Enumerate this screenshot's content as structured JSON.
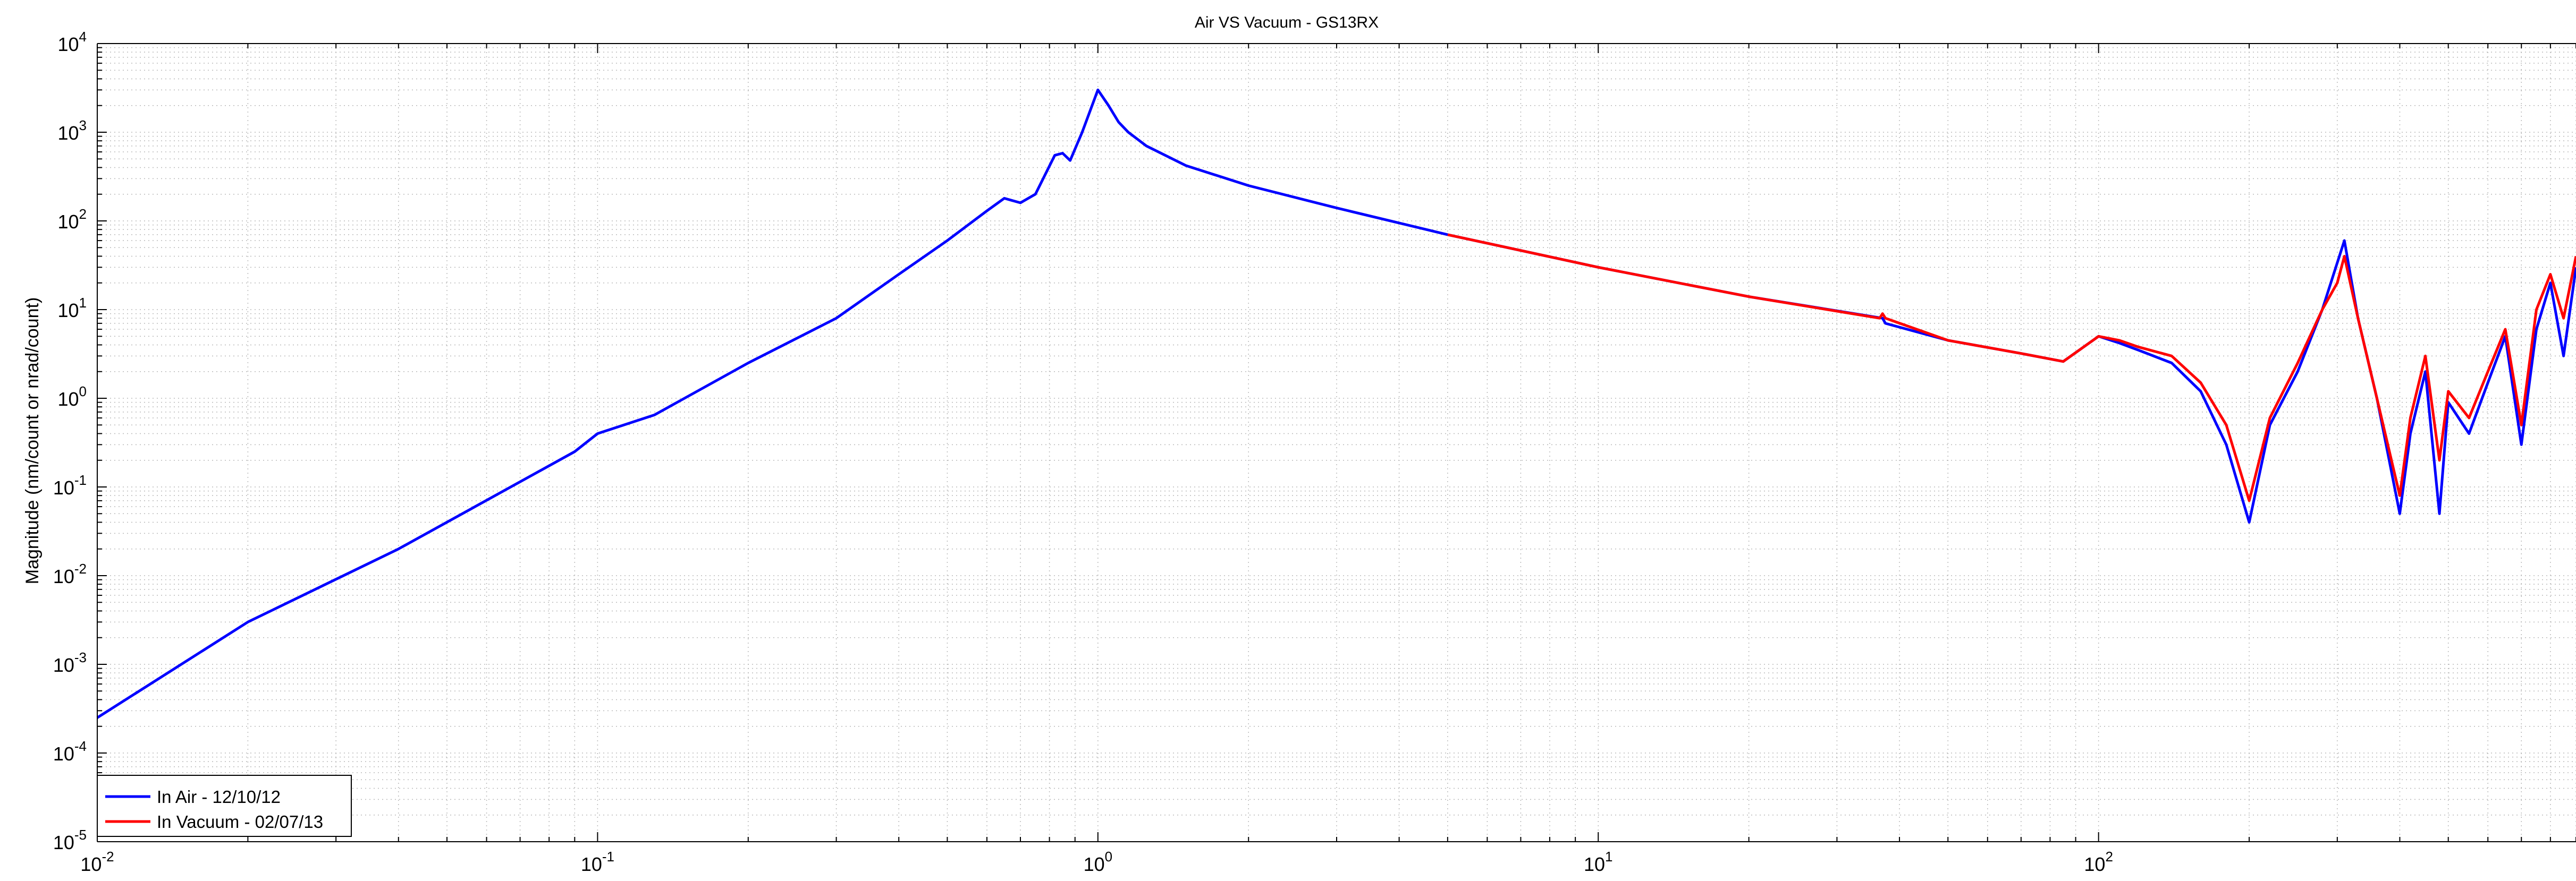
{
  "chart_data": {
    "type": "line",
    "title": "Air VS Vacuum - GS13RX",
    "xlabel": "",
    "ylabel": "Magnitude (nm/count or nrad/count)",
    "x_scale": "log",
    "y_scale": "log",
    "xlim": [
      0.01,
      900
    ],
    "ylim": [
      1e-05,
      10000
    ],
    "grid": true,
    "legend_position": "bottom-left",
    "x_ticks": [
      {
        "value": 0.01,
        "mantissa": "10",
        "exp": "-2"
      },
      {
        "value": 0.1,
        "mantissa": "10",
        "exp": "-1"
      },
      {
        "value": 1,
        "mantissa": "10",
        "exp": "0"
      },
      {
        "value": 10,
        "mantissa": "10",
        "exp": "1"
      },
      {
        "value": 100,
        "mantissa": "10",
        "exp": "2"
      }
    ],
    "y_ticks": [
      {
        "value": 1e-05,
        "mantissa": "10",
        "exp": "-5"
      },
      {
        "value": 0.0001,
        "mantissa": "10",
        "exp": "-4"
      },
      {
        "value": 0.001,
        "mantissa": "10",
        "exp": "-3"
      },
      {
        "value": 0.01,
        "mantissa": "10",
        "exp": "-2"
      },
      {
        "value": 0.1,
        "mantissa": "10",
        "exp": "-1"
      },
      {
        "value": 1,
        "mantissa": "10",
        "exp": "0"
      },
      {
        "value": 10,
        "mantissa": "10",
        "exp": "1"
      },
      {
        "value": 100,
        "mantissa": "10",
        "exp": "2"
      },
      {
        "value": 1000,
        "mantissa": "10",
        "exp": "3"
      },
      {
        "value": 10000,
        "mantissa": "10",
        "exp": "4"
      }
    ],
    "series": [
      {
        "name": "In Air - 12/10/12",
        "color": "#0000ff",
        "x": [
          0.01,
          0.02,
          0.04,
          0.09,
          0.1,
          0.13,
          0.2,
          0.3,
          0.4,
          0.5,
          0.6,
          0.65,
          0.7,
          0.75,
          0.82,
          0.85,
          0.88,
          0.93,
          1.0,
          1.05,
          1.1,
          1.15,
          1.25,
          1.5,
          2,
          3,
          5,
          10,
          20,
          37,
          37.5,
          50,
          70,
          85,
          100,
          110,
          120,
          140,
          160,
          180,
          200,
          220,
          250,
          280,
          310,
          330,
          360,
          400,
          420,
          450,
          480,
          500,
          550,
          600,
          650,
          700,
          750,
          800,
          850,
          900
        ],
        "y": [
          0.00025,
          0.003,
          0.02,
          0.25,
          0.4,
          0.65,
          2.5,
          8,
          25,
          60,
          130,
          180,
          160,
          200,
          550,
          580,
          480,
          1000,
          3000,
          2000,
          1300,
          1000,
          700,
          420,
          250,
          140,
          70,
          30,
          14,
          8,
          7,
          4.5,
          3.2,
          2.6,
          5,
          4.2,
          3.5,
          2.5,
          1.2,
          0.3,
          0.04,
          0.5,
          2,
          10,
          60,
          8,
          1,
          0.05,
          0.4,
          2,
          0.05,
          0.9,
          0.4,
          1.5,
          5,
          0.3,
          6,
          20,
          3,
          30
        ]
      },
      {
        "name": "In Vacuum - 02/07/13",
        "color": "#ff0000",
        "x": [
          5,
          10,
          20,
          36.5,
          37,
          37.5,
          50,
          70,
          85,
          100,
          110,
          120,
          140,
          160,
          180,
          200,
          220,
          250,
          280,
          300,
          310,
          330,
          360,
          400,
          420,
          450,
          480,
          500,
          550,
          600,
          650,
          700,
          750,
          800,
          850,
          900
        ],
        "y": [
          70,
          30,
          14,
          8,
          9,
          8,
          4.5,
          3.2,
          2.6,
          5,
          4.5,
          3.8,
          3,
          1.5,
          0.5,
          0.07,
          0.6,
          2.5,
          10,
          20,
          40,
          8,
          1,
          0.08,
          0.6,
          3,
          0.2,
          1.2,
          0.6,
          2,
          6,
          0.5,
          10,
          25,
          8,
          40
        ]
      }
    ]
  }
}
